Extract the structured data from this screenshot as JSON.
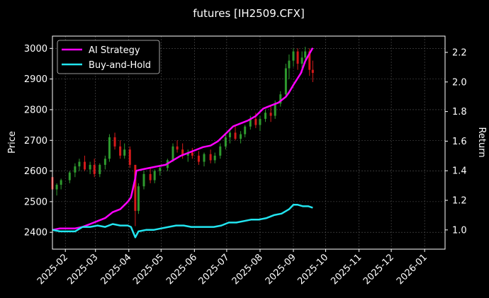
{
  "chart_data": {
    "type": "line",
    "title": "futures [IH2509.CFX]",
    "ylabel_left": "Price",
    "ylabel_right": "Return",
    "x_ticks": [
      "2025-02",
      "2025-03",
      "2025-04",
      "2025-05",
      "2025-06",
      "2025-07",
      "2025-08",
      "2025-09",
      "2025-10",
      "2025-11",
      "2025-12",
      "2026-01"
    ],
    "x_range": [
      "2025-01-20",
      "2026-01-20"
    ],
    "ylim_left": [
      2345,
      3040
    ],
    "ylim_right": [
      0.87,
      2.31
    ],
    "y_ticks_left": [
      2400,
      2500,
      2600,
      2700,
      2800,
      2900,
      3000
    ],
    "y_ticks_right": [
      1.0,
      1.2,
      1.4,
      1.6,
      1.8,
      2.0,
      2.2
    ],
    "y_tick_labels_right": [
      "1.0",
      "1.2",
      "1.4",
      "1.6",
      "1.8",
      "2.0",
      "2.2"
    ],
    "grid": true,
    "legend_position": "top-left",
    "colors": {
      "up": "#2e9a2e",
      "down": "#d61a1a",
      "ai": "#ff00ff",
      "bh": "#22e5f0"
    },
    "series": [
      {
        "name": "AI Strategy",
        "axis": "right",
        "points": [
          [
            "2025-01-20",
            1.0
          ],
          [
            "2025-01-27",
            1.01
          ],
          [
            "2025-02-03",
            1.01
          ],
          [
            "2025-02-10",
            1.01
          ],
          [
            "2025-02-17",
            1.02
          ],
          [
            "2025-02-24",
            1.04
          ],
          [
            "2025-03-03",
            1.06
          ],
          [
            "2025-03-10",
            1.08
          ],
          [
            "2025-03-17",
            1.12
          ],
          [
            "2025-03-24",
            1.14
          ],
          [
            "2025-03-31",
            1.19
          ],
          [
            "2025-04-03",
            1.22
          ],
          [
            "2025-04-07",
            1.35
          ],
          [
            "2025-04-08",
            1.4
          ],
          [
            "2025-04-14",
            1.41
          ],
          [
            "2025-04-21",
            1.42
          ],
          [
            "2025-04-28",
            1.43
          ],
          [
            "2025-05-05",
            1.44
          ],
          [
            "2025-05-12",
            1.47
          ],
          [
            "2025-05-19",
            1.5
          ],
          [
            "2025-05-26",
            1.52
          ],
          [
            "2025-06-02",
            1.54
          ],
          [
            "2025-06-09",
            1.56
          ],
          [
            "2025-06-16",
            1.57
          ],
          [
            "2025-06-23",
            1.6
          ],
          [
            "2025-06-30",
            1.65
          ],
          [
            "2025-07-07",
            1.7
          ],
          [
            "2025-07-14",
            1.72
          ],
          [
            "2025-07-21",
            1.74
          ],
          [
            "2025-07-28",
            1.77
          ],
          [
            "2025-08-04",
            1.82
          ],
          [
            "2025-08-11",
            1.84
          ],
          [
            "2025-08-18",
            1.86
          ],
          [
            "2025-08-25",
            1.9
          ],
          [
            "2025-08-28",
            1.93
          ],
          [
            "2025-09-01",
            1.98
          ],
          [
            "2025-09-08",
            2.06
          ],
          [
            "2025-09-12",
            2.14
          ],
          [
            "2025-09-15",
            2.18
          ],
          [
            "2025-09-19",
            2.23
          ]
        ]
      },
      {
        "name": "Buy-and-Hold",
        "axis": "right",
        "points": [
          [
            "2025-01-20",
            1.0
          ],
          [
            "2025-01-27",
            0.99
          ],
          [
            "2025-02-03",
            0.99
          ],
          [
            "2025-02-10",
            0.99
          ],
          [
            "2025-02-17",
            1.02
          ],
          [
            "2025-02-24",
            1.02
          ],
          [
            "2025-03-03",
            1.03
          ],
          [
            "2025-03-10",
            1.02
          ],
          [
            "2025-03-17",
            1.04
          ],
          [
            "2025-03-24",
            1.03
          ],
          [
            "2025-03-31",
            1.03
          ],
          [
            "2025-04-03",
            1.02
          ],
          [
            "2025-04-07",
            0.95
          ],
          [
            "2025-04-10",
            0.99
          ],
          [
            "2025-04-17",
            1.0
          ],
          [
            "2025-04-24",
            1.0
          ],
          [
            "2025-05-01",
            1.01
          ],
          [
            "2025-05-08",
            1.02
          ],
          [
            "2025-05-15",
            1.03
          ],
          [
            "2025-05-22",
            1.03
          ],
          [
            "2025-05-29",
            1.02
          ],
          [
            "2025-06-05",
            1.02
          ],
          [
            "2025-06-12",
            1.02
          ],
          [
            "2025-06-19",
            1.02
          ],
          [
            "2025-06-26",
            1.03
          ],
          [
            "2025-07-03",
            1.05
          ],
          [
            "2025-07-10",
            1.05
          ],
          [
            "2025-07-17",
            1.06
          ],
          [
            "2025-07-24",
            1.07
          ],
          [
            "2025-07-31",
            1.07
          ],
          [
            "2025-08-07",
            1.08
          ],
          [
            "2025-08-14",
            1.1
          ],
          [
            "2025-08-21",
            1.11
          ],
          [
            "2025-08-28",
            1.14
          ],
          [
            "2025-09-01",
            1.17
          ],
          [
            "2025-09-05",
            1.17
          ],
          [
            "2025-09-10",
            1.16
          ],
          [
            "2025-09-15",
            1.16
          ],
          [
            "2025-09-19",
            1.15
          ]
        ]
      }
    ],
    "price_candles": [
      [
        "2025-01-20",
        2580,
        2590,
        2530,
        2540
      ],
      [
        "2025-01-24",
        2540,
        2560,
        2520,
        2555
      ],
      [
        "2025-01-28",
        2555,
        2575,
        2540,
        2570
      ],
      [
        "2025-02-05",
        2570,
        2600,
        2560,
        2595
      ],
      [
        "2025-02-10",
        2595,
        2625,
        2580,
        2615
      ],
      [
        "2025-02-14",
        2615,
        2640,
        2600,
        2630
      ],
      [
        "2025-02-19",
        2630,
        2650,
        2600,
        2605
      ],
      [
        "2025-02-24",
        2605,
        2630,
        2590,
        2620
      ],
      [
        "2025-02-28",
        2620,
        2640,
        2580,
        2590
      ],
      [
        "2025-03-05",
        2590,
        2625,
        2580,
        2620
      ],
      [
        "2025-03-10",
        2620,
        2650,
        2605,
        2640
      ],
      [
        "2025-03-14",
        2640,
        2720,
        2630,
        2710
      ],
      [
        "2025-03-19",
        2710,
        2725,
        2670,
        2680
      ],
      [
        "2025-03-24",
        2680,
        2700,
        2640,
        2650
      ],
      [
        "2025-03-28",
        2650,
        2690,
        2640,
        2670
      ],
      [
        "2025-04-02",
        2670,
        2680,
        2610,
        2620
      ],
      [
        "2025-04-07",
        2620,
        2620,
        2420,
        2470
      ],
      [
        "2025-04-10",
        2470,
        2560,
        2460,
        2550
      ],
      [
        "2025-04-15",
        2550,
        2600,
        2540,
        2590
      ],
      [
        "2025-04-21",
        2590,
        2610,
        2560,
        2570
      ],
      [
        "2025-04-25",
        2570,
        2605,
        2560,
        2600
      ],
      [
        "2025-04-30",
        2600,
        2620,
        2585,
        2610
      ],
      [
        "2025-05-07",
        2610,
        2640,
        2600,
        2635
      ],
      [
        "2025-05-12",
        2635,
        2690,
        2630,
        2680
      ],
      [
        "2025-05-16",
        2680,
        2700,
        2660,
        2670
      ],
      [
        "2025-05-21",
        2670,
        2690,
        2640,
        2650
      ],
      [
        "2025-05-26",
        2650,
        2670,
        2630,
        2660
      ],
      [
        "2025-05-30",
        2660,
        2675,
        2640,
        2650
      ],
      [
        "2025-06-05",
        2650,
        2665,
        2620,
        2630
      ],
      [
        "2025-06-10",
        2630,
        2660,
        2615,
        2655
      ],
      [
        "2025-06-16",
        2655,
        2670,
        2625,
        2635
      ],
      [
        "2025-06-20",
        2635,
        2660,
        2625,
        2650
      ],
      [
        "2025-06-25",
        2650,
        2690,
        2640,
        2680
      ],
      [
        "2025-06-30",
        2680,
        2720,
        2670,
        2710
      ],
      [
        "2025-07-04",
        2710,
        2735,
        2690,
        2725
      ],
      [
        "2025-07-09",
        2725,
        2750,
        2700,
        2705
      ],
      [
        "2025-07-14",
        2705,
        2730,
        2690,
        2720
      ],
      [
        "2025-07-18",
        2720,
        2750,
        2710,
        2745
      ],
      [
        "2025-07-23",
        2745,
        2780,
        2735,
        2770
      ],
      [
        "2025-07-28",
        2770,
        2790,
        2740,
        2750
      ],
      [
        "2025-08-01",
        2750,
        2780,
        2730,
        2770
      ],
      [
        "2025-08-06",
        2770,
        2800,
        2760,
        2790
      ],
      [
        "2025-08-11",
        2790,
        2810,
        2760,
        2780
      ],
      [
        "2025-08-15",
        2780,
        2830,
        2770,
        2820
      ],
      [
        "2025-08-20",
        2820,
        2860,
        2810,
        2850
      ],
      [
        "2025-08-25",
        2850,
        2950,
        2840,
        2935
      ],
      [
        "2025-08-28",
        2935,
        2980,
        2900,
        2960
      ],
      [
        "2025-09-01",
        2960,
        3000,
        2940,
        2990
      ],
      [
        "2025-09-05",
        2990,
        3000,
        2930,
        2950
      ],
      [
        "2025-09-09",
        2950,
        2990,
        2920,
        2970
      ],
      [
        "2025-09-12",
        2970,
        3005,
        2950,
        2990
      ],
      [
        "2025-09-16",
        2990,
        3000,
        2910,
        2930
      ],
      [
        "2025-09-19",
        2930,
        2960,
        2890,
        2920
      ]
    ]
  }
}
